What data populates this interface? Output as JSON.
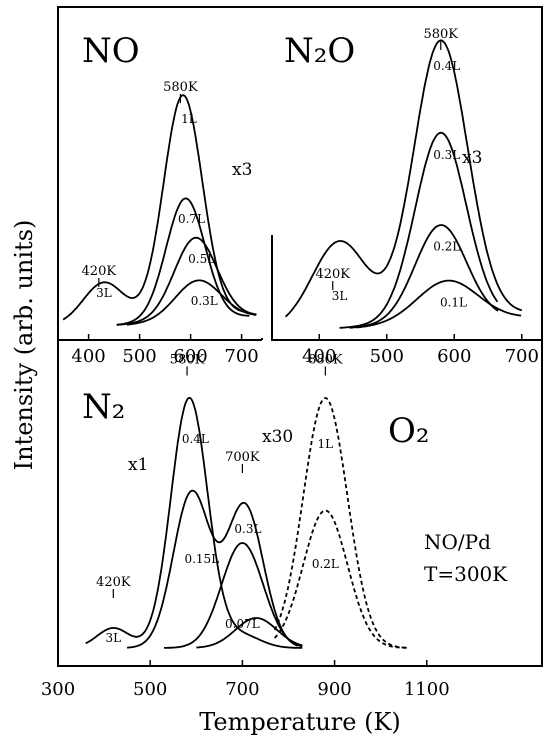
{
  "figure": {
    "ylabel": "Intensity (arb. units)",
    "xlabel": "Temperature (K)",
    "condition": [
      "NO/Pd",
      "T=300K"
    ]
  },
  "chart_data": [
    {
      "type": "line",
      "panel": "NO",
      "title": "NO",
      "multiplier": "x3",
      "xlim": [
        340,
        740
      ],
      "xticks": [
        400,
        500,
        600,
        700
      ],
      "peak_labels": [
        {
          "label": "580K",
          "x": 580
        },
        {
          "label": "420K",
          "x": 420
        }
      ],
      "series": [
        {
          "name": "1L",
          "peak_x": 585,
          "peak": 1.0,
          "x0": 350,
          "x1": 705,
          "shoulder": 0.18,
          "sigma": 38
        },
        {
          "name": "0.7L",
          "peak_x": 590,
          "peak": 0.55,
          "x0": 455,
          "x1": 715,
          "shoulder": 0,
          "sigma": 38
        },
        {
          "name": "0.5L",
          "peak_x": 610,
          "peak": 0.37,
          "x0": 455,
          "x1": 730,
          "shoulder": 0,
          "sigma": 42
        },
        {
          "name": "0.3L",
          "peak_x": 615,
          "peak": 0.18,
          "x0": 475,
          "x1": 730,
          "shoulder": 0,
          "sigma": 45
        },
        {
          "name": "3L",
          "peak_x": 585,
          "peak": 0.92,
          "x0": 455,
          "x1": 700,
          "shoulder": 0,
          "sigma": 36
        }
      ]
    },
    {
      "type": "line",
      "panel": "N2O",
      "title": "N₂O",
      "multiplier": "x3",
      "xlim": [
        330,
        730
      ],
      "xticks": [
        400,
        500,
        600,
        700
      ],
      "peak_labels": [
        {
          "label": "580K",
          "x": 580
        },
        {
          "label": "420K",
          "x": 420
        }
      ],
      "series": [
        {
          "name": "0.4L",
          "peak_x": 580,
          "peak": 1.0,
          "x0": 350,
          "x1": 700,
          "shoulder": 0.3,
          "sigma": 40
        },
        {
          "name": "0.3L",
          "peak_x": 580,
          "peak": 0.68,
          "x0": 430,
          "x1": 665,
          "shoulder": 0,
          "sigma": 38
        },
        {
          "name": "0.2L",
          "peak_x": 580,
          "peak": 0.35,
          "x0": 445,
          "x1": 665,
          "shoulder": 0,
          "sigma": 38
        },
        {
          "name": "0.1L",
          "peak_x": 590,
          "peak": 0.15,
          "x0": 455,
          "x1": 700,
          "shoulder": 0,
          "sigma": 45
        },
        {
          "name": "3L",
          "peak_x": 580,
          "peak": 0.86,
          "x0": 430,
          "x1": 700,
          "shoulder": 0,
          "sigma": 40
        }
      ]
    },
    {
      "type": "line",
      "panel": "N2+O2",
      "titles": [
        "N₂",
        "O₂"
      ],
      "multipliers": [
        "x1",
        "x30"
      ],
      "xlim": [
        300,
        1350
      ],
      "xticks": [
        300,
        500,
        700,
        900,
        1100
      ],
      "peak_labels": [
        {
          "label": "580K",
          "x": 580
        },
        {
          "label": "700K",
          "x": 700
        },
        {
          "label": "420K",
          "x": 420
        },
        {
          "label": "880K",
          "x": 880
        }
      ],
      "series": [
        {
          "name": "0.4L",
          "gas": "N2",
          "peak_x": 585,
          "peak": 1.0,
          "x0": 360,
          "x1": 830,
          "shoulder": 0.08
        },
        {
          "name": "0.3L",
          "gas": "N2",
          "peak_x": 590,
          "peak": 0.62,
          "second_x": 705,
          "second_peak": 0.57,
          "x0": 450,
          "x1": 820
        },
        {
          "name": "0.15L",
          "gas": "N2",
          "peak_x": 700,
          "peak": 0.42,
          "x0": 530,
          "x1": 830
        },
        {
          "name": "0.07L",
          "gas": "N2",
          "peak_x": 730,
          "peak": 0.12,
          "x0": 600,
          "x1": 830
        },
        {
          "name": "3L",
          "gas": "N2",
          "peak_x": 585,
          "peak": 0.92
        },
        {
          "name": "1L",
          "gas": "O2",
          "peak_x": 880,
          "peak": 1.0,
          "x0": 770,
          "x1": 1060,
          "dashed": true
        },
        {
          "name": "0.2L",
          "gas": "O2",
          "peak_x": 880,
          "peak": 0.55,
          "x0": 770,
          "x1": 1060,
          "dashed": true
        }
      ]
    }
  ]
}
